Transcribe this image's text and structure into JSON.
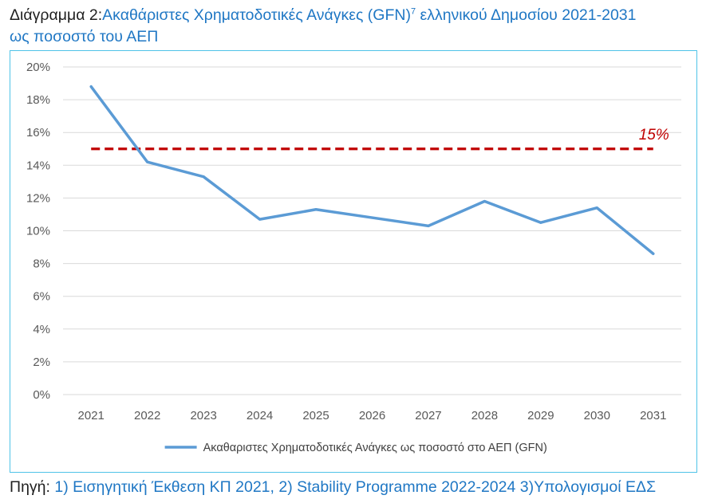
{
  "caption": {
    "prefix": "Διάγραμμα 2:",
    "title_part1": "Ακαθάριστες Χρηματοδοτικές Ανάγκες (GFN)",
    "footnote_ref": "7",
    "title_part2": " ελληνικού Δημοσίου 2021-2031",
    "title_line2": "ως ποσοστό του ΑΕΠ"
  },
  "source": {
    "label": "Πηγή:",
    "text": " 1) Εισηγητική Έκθεση ΚΠ 2021, 2) Stability Programme 2022-2024 3)Υπολογισμοί ΕΔΣ"
  },
  "colors": {
    "series": "#5b9bd5",
    "threshold": "#c00000",
    "grid": "#d9d9d9",
    "frame": "#4fc3e8",
    "accent_text": "#1f77c4"
  },
  "chart_data": {
    "type": "line",
    "x": [
      "2021",
      "2022",
      "2023",
      "2024",
      "2025",
      "2026",
      "2027",
      "2028",
      "2029",
      "2030",
      "2031"
    ],
    "series": [
      {
        "name": "Ακαθαριστες Χρηματοδοτικές Ανάγκες ως ποσοστό στο ΑΕΠ (GFN)",
        "values": [
          18.8,
          14.2,
          13.3,
          10.7,
          11.3,
          10.8,
          10.3,
          11.8,
          10.5,
          11.4,
          8.6
        ]
      }
    ],
    "threshold": {
      "value": 15,
      "label": "15%",
      "style": "dashed"
    },
    "yticks": [
      "0%",
      "2%",
      "4%",
      "6%",
      "8%",
      "10%",
      "12%",
      "14%",
      "16%",
      "18%",
      "20%"
    ],
    "ylim": [
      0,
      20
    ],
    "grid": true,
    "legend_position": "bottom"
  }
}
